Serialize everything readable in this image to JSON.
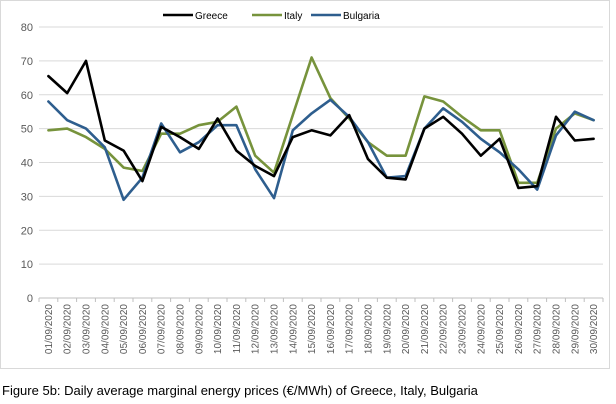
{
  "chart_data": {
    "type": "line",
    "title": "",
    "xlabel": "",
    "ylabel": "",
    "ylim": [
      0,
      80
    ],
    "yticks": [
      0,
      10,
      20,
      30,
      40,
      50,
      60,
      70,
      80
    ],
    "grid": "horizontal",
    "legend_position": "top",
    "categories": [
      "01/09/2020",
      "02/09/2020",
      "03/09/2020",
      "04/09/2020",
      "05/09/2020",
      "06/09/2020",
      "07/09/2020",
      "08/09/2020",
      "09/09/2020",
      "10/09/2020",
      "11/09/2020",
      "12/09/2020",
      "13/09/2020",
      "14/09/2020",
      "15/09/2020",
      "16/09/2020",
      "17/09/2020",
      "18/09/2020",
      "19/09/2020",
      "20/09/2020",
      "21/09/2020",
      "22/09/2020",
      "23/09/2020",
      "24/09/2020",
      "25/09/2020",
      "26/09/2020",
      "27/09/2020",
      "28/09/2020",
      "29/09/2020",
      "30/09/2020"
    ],
    "series": [
      {
        "name": "Greece",
        "color": "#000000",
        "values": [
          65.5,
          60.5,
          70.0,
          46.5,
          43.5,
          34.5,
          50.5,
          47.5,
          44.0,
          53.0,
          43.5,
          39.0,
          36.0,
          47.5,
          49.5,
          48.0,
          54.0,
          41.0,
          35.5,
          35.0,
          50.0,
          53.5,
          48.5,
          42.0,
          47.0,
          32.5,
          33.0,
          53.5,
          46.5,
          47.0
        ]
      },
      {
        "name": "Italy",
        "color": "#77933c",
        "values": [
          49.5,
          50.0,
          47.5,
          44.0,
          38.5,
          37.5,
          48.5,
          48.5,
          51.0,
          52.0,
          56.5,
          42.0,
          37.0,
          54.0,
          71.0,
          59.0,
          53.0,
          46.0,
          42.0,
          42.0,
          59.5,
          58.0,
          53.5,
          49.5,
          49.5,
          34.0,
          34.0,
          50.0,
          54.5,
          52.5
        ]
      },
      {
        "name": "Bulgaria",
        "color": "#2e5e8e",
        "values": [
          58.0,
          52.5,
          50.0,
          44.5,
          29.0,
          35.5,
          51.5,
          43.0,
          46.0,
          51.0,
          51.0,
          38.0,
          29.5,
          49.5,
          54.5,
          58.5,
          53.5,
          46.0,
          35.5,
          36.0,
          50.0,
          56.0,
          52.0,
          47.0,
          43.0,
          38.0,
          32.0,
          48.0,
          55.0,
          52.5
        ]
      }
    ]
  },
  "caption": "Figure 5b: Daily average marginal energy prices (€/MWh) of Greece, Italy, Bulgaria"
}
